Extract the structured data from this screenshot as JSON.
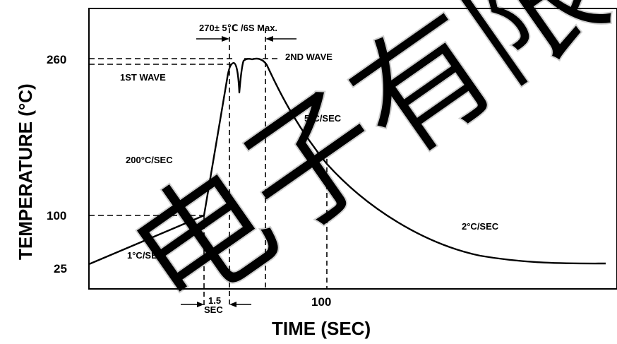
{
  "chart": {
    "x_axis_title": "TIME (SEC)",
    "y_axis_title": "TEMPERATURE (°C)",
    "y_ticks": [
      "260",
      "100",
      "25"
    ],
    "x_ticks": [
      "100"
    ],
    "top_annotation": "270± 5℃ /6S Max.",
    "labels": {
      "first_wave": "1ST WAVE",
      "second_wave": "2ND WAVE",
      "ramp_1": "1°C/SEC",
      "ramp_200": "200°C/SEC",
      "cool_5": "5°C/SEC",
      "cool_2": "2°C/SEC",
      "dim_value": "1.5",
      "dim_unit": "SEC"
    }
  },
  "watermark": {
    "text": "电子有限",
    "color": "#cfcfcf"
  }
}
